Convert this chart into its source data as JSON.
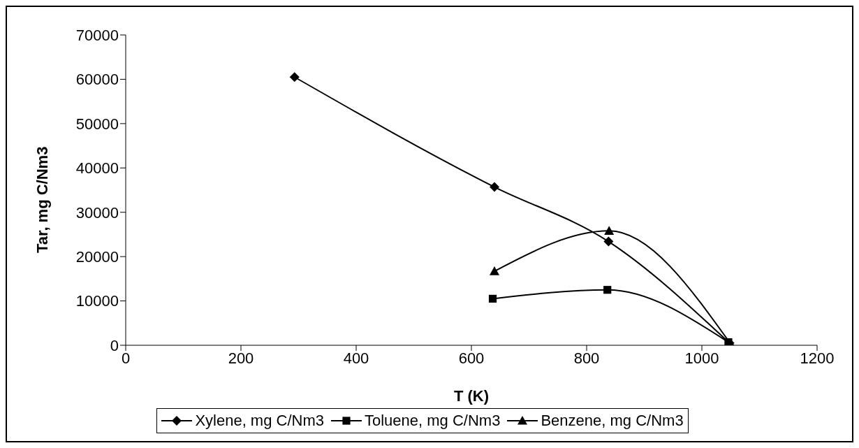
{
  "chart_data": {
    "type": "line",
    "xlabel": "T (K)",
    "ylabel": "Tar, mg C/Nm3",
    "xlim": [
      0,
      1200
    ],
    "xticks": [
      0,
      200,
      400,
      600,
      800,
      1000,
      1200
    ],
    "ylim": [
      0,
      70000
    ],
    "yticks": [
      0,
      10000,
      20000,
      30000,
      40000,
      50000,
      60000,
      70000
    ],
    "grid": false,
    "legend": "bottom",
    "series": [
      {
        "name": "Xylene, mg C/Nm3",
        "color": "#000000",
        "marker": "diamond",
        "x": [
          293,
          640,
          838,
          1048
        ],
        "values": [
          60500,
          35700,
          23400,
          500
        ]
      },
      {
        "name": "Toluene, mg C/Nm3",
        "color": "#000000",
        "marker": "square",
        "x": [
          637,
          836,
          1046
        ],
        "values": [
          10500,
          12500,
          700
        ]
      },
      {
        "name": "Benzene, mg C/Nm3",
        "color": "#000000",
        "marker": "triangle",
        "x": [
          640,
          839,
          1050
        ],
        "values": [
          16700,
          25800,
          300
        ]
      }
    ]
  }
}
